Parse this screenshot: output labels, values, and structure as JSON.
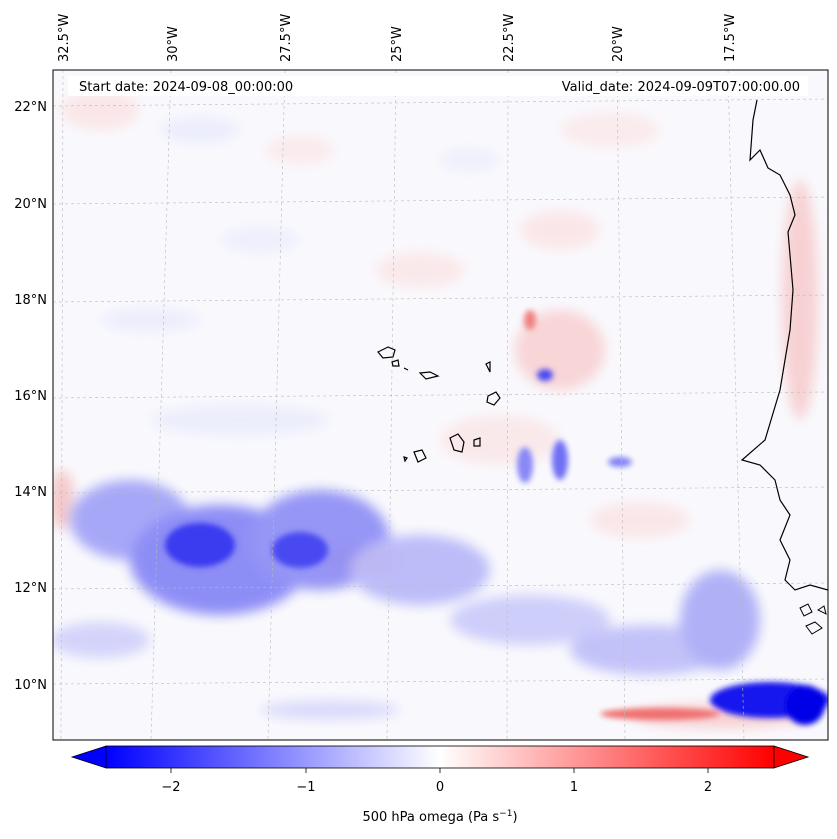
{
  "map": {
    "start_label": "Start date: 2024-09-08_00:00:00",
    "valid_label": "Valid_date: 2024-09-09T07:00:00.00",
    "lon_labels": [
      "32.5°W",
      "30°W",
      "27.5°W",
      "25°W",
      "22.5°W",
      "20°W",
      "17.5°W"
    ],
    "lat_labels": [
      "22°N",
      "20°N",
      "18°N",
      "16°N",
      "14°N",
      "12°N",
      "10°N"
    ],
    "variable": "500 hPa omega",
    "colorbar_ticks": [
      "−2",
      "−1",
      "0",
      "1",
      "2"
    ],
    "colorbar_label": "500 hPa omega (Pa s",
    "colorbar_label_exp": "−1",
    "colorbar_label_end": ")",
    "colorbar_range": [
      -2.7,
      2.7
    ],
    "colormap": "bwr",
    "colors": {
      "negative": "#0000ff",
      "zero": "#ffffff",
      "positive": "#ff0000",
      "coast": "#000000",
      "grid": "#bbbbbb"
    }
  }
}
